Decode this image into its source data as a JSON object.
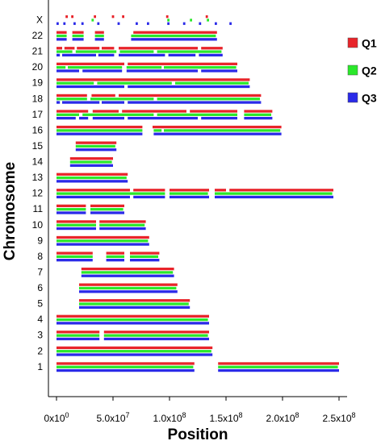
{
  "chart_data": {
    "type": "chromosome-track",
    "title": "",
    "xlabel": "Position",
    "ylabel": "Chromosome",
    "xlim": [
      0,
      250000000
    ],
    "x_ticks": [
      {
        "value": 0,
        "label": "0x10"
      },
      {
        "value": 50000000,
        "label": "5.0x10"
      },
      {
        "value": 100000000,
        "label": "1.0x10"
      },
      {
        "value": 150000000,
        "label": "1.5x10"
      },
      {
        "value": 200000000,
        "label": "2.0x10"
      },
      {
        "value": 250000000,
        "label": "2.5x10"
      }
    ],
    "x_tick_exponents": [
      "0",
      "7",
      "8",
      "8",
      "8",
      "8"
    ],
    "legend": {
      "placement": "right",
      "entries": [
        {
          "name": "Q1",
          "color": "#e8242a"
        },
        {
          "name": "Q2",
          "color": "#2ae82a"
        },
        {
          "name": "Q3",
          "color": "#2a2ae8"
        }
      ]
    },
    "chromosomes": [
      {
        "label": "X",
        "segments": [
          [
            [
              8000000,
              10000000
            ],
            [
              13000000,
              15000000
            ],
            [
              33000000,
              35000000
            ],
            [
              49000000,
              51000000
            ],
            [
              58000000,
              60000000
            ],
            [
              97000000,
              99000000
            ],
            [
              132000000,
              134000000
            ]
          ],
          [
            [
              31000000,
              33000000
            ],
            [
              98000000,
              100000000
            ],
            [
              118000000,
              120000000
            ],
            [
              133000000,
              135000000
            ]
          ],
          [
            [
              0,
              2000000
            ],
            [
              6000000,
              8000000
            ],
            [
              15000000,
              17000000
            ],
            [
              22000000,
              24000000
            ],
            [
              36000000,
              38000000
            ],
            [
              54000000,
              56000000
            ],
            [
              70000000,
              72000000
            ],
            [
              80000000,
              82000000
            ],
            [
              98000000,
              100000000
            ],
            [
              112000000,
              114000000
            ],
            [
              126000000,
              128000000
            ],
            [
              140000000,
              142000000
            ],
            [
              153000000,
              155000000
            ]
          ]
        ]
      },
      {
        "label": "22",
        "segments": [
          [
            [
              0,
              9000000
            ],
            [
              14000000,
              24000000
            ],
            [
              34000000,
              42000000
            ],
            [
              68000000,
              142000000
            ]
          ],
          [
            [
              0,
              9000000
            ],
            [
              14000000,
              24000000
            ],
            [
              34000000,
              42000000
            ],
            [
              66000000,
              141000000
            ]
          ],
          [
            [
              0,
              9000000
            ],
            [
              14000000,
              24000000
            ],
            [
              34000000,
              42000000
            ],
            [
              66000000,
              142000000
            ]
          ]
        ]
      },
      {
        "label": "21",
        "segments": [
          [
            [
              0,
              5000000
            ],
            [
              7000000,
              16000000
            ],
            [
              18000000,
              38000000
            ],
            [
              40000000,
              51000000
            ],
            [
              55000000,
              125000000
            ],
            [
              128000000,
              147000000
            ]
          ],
          [
            [
              0,
              14000000
            ],
            [
              17000000,
              53000000
            ],
            [
              56000000,
              86000000
            ],
            [
              89000000,
              146000000
            ]
          ],
          [
            [
              0,
              3000000
            ],
            [
              5000000,
              35000000
            ],
            [
              37000000,
              51000000
            ],
            [
              55000000,
              96000000
            ],
            [
              99000000,
              123000000
            ],
            [
              126000000,
              147000000
            ]
          ]
        ]
      },
      {
        "label": "20",
        "segments": [
          [
            [
              0,
              60000000
            ],
            [
              63000000,
              160000000
            ]
          ],
          [
            [
              0,
              8000000
            ],
            [
              10000000,
              58000000
            ],
            [
              62000000,
              93000000
            ],
            [
              95000000,
              159000000
            ]
          ],
          [
            [
              0,
              20000000
            ],
            [
              23000000,
              58000000
            ],
            [
              62000000,
              125000000
            ],
            [
              128000000,
              160000000
            ]
          ]
        ]
      },
      {
        "label": "19",
        "segments": [
          [
            [
              0,
              171000000
            ]
          ],
          [
            [
              0,
              33000000
            ],
            [
              36000000,
              102000000
            ],
            [
              105000000,
              170000000
            ]
          ],
          [
            [
              0,
              60000000
            ],
            [
              63000000,
              171000000
            ]
          ]
        ]
      },
      {
        "label": "18",
        "segments": [
          [
            [
              0,
              27000000
            ],
            [
              31000000,
              52000000
            ],
            [
              55000000,
              181000000
            ]
          ],
          [
            [
              0,
              27000000
            ],
            [
              30000000,
              86000000
            ],
            [
              89000000,
              180000000
            ]
          ],
          [
            [
              0,
              3000000
            ],
            [
              5000000,
              38000000
            ],
            [
              40000000,
              60000000
            ],
            [
              63000000,
              181000000
            ]
          ]
        ]
      },
      {
        "label": "17",
        "segments": [
          [
            [
              0,
              28000000
            ],
            [
              32000000,
              55000000
            ],
            [
              58000000,
              115000000
            ],
            [
              118000000,
              160000000
            ],
            [
              166000000,
              191000000
            ]
          ],
          [
            [
              0,
              20000000
            ],
            [
              23000000,
              86000000
            ],
            [
              89000000,
              160000000
            ],
            [
              166000000,
              190000000
            ]
          ],
          [
            [
              0,
              17000000
            ],
            [
              20000000,
              28000000
            ],
            [
              32000000,
              60000000
            ],
            [
              63000000,
              125000000
            ],
            [
              128000000,
              160000000
            ],
            [
              166000000,
              191000000
            ]
          ]
        ]
      },
      {
        "label": "16",
        "segments": [
          [
            [
              0,
              76000000
            ],
            [
              85000000,
              199000000
            ]
          ],
          [
            [
              0,
              76000000
            ],
            [
              86000000,
              93000000
            ],
            [
              95000000,
              198000000
            ]
          ],
          [
            [
              0,
              76000000
            ],
            [
              86000000,
              199000000
            ]
          ]
        ]
      },
      {
        "label": "15",
        "segments": [
          [
            [
              17000000,
              53000000
            ]
          ],
          [
            [
              17000000,
              52000000
            ]
          ],
          [
            [
              17000000,
              53000000
            ]
          ]
        ]
      },
      {
        "label": "14",
        "segments": [
          [
            [
              12000000,
              50000000
            ]
          ],
          [
            [
              12000000,
              49000000
            ]
          ],
          [
            [
              12000000,
              50000000
            ]
          ]
        ]
      },
      {
        "label": "13",
        "segments": [
          [
            [
              0,
              63000000
            ]
          ],
          [
            [
              0,
              62000000
            ]
          ],
          [
            [
              0,
              63000000
            ]
          ]
        ]
      },
      {
        "label": "12",
        "segments": [
          [
            [
              0,
              65000000
            ],
            [
              68000000,
              96000000
            ],
            [
              100000000,
              135000000
            ],
            [
              140000000,
              150000000
            ],
            [
              153000000,
              245000000
            ]
          ],
          [
            [
              0,
              96000000
            ],
            [
              100000000,
              134000000
            ],
            [
              140000000,
              244000000
            ]
          ],
          [
            [
              0,
              65000000
            ],
            [
              68000000,
              96000000
            ],
            [
              100000000,
              135000000
            ],
            [
              140000000,
              245000000
            ]
          ]
        ]
      },
      {
        "label": "11",
        "segments": [
          [
            [
              0,
              26000000
            ],
            [
              30000000,
              60000000
            ]
          ],
          [
            [
              0,
              26000000
            ],
            [
              30000000,
              59000000
            ]
          ],
          [
            [
              0,
              26000000
            ],
            [
              30000000,
              60000000
            ]
          ]
        ]
      },
      {
        "label": "10",
        "segments": [
          [
            [
              0,
              35000000
            ],
            [
              38000000,
              79000000
            ]
          ],
          [
            [
              0,
              35000000
            ],
            [
              38000000,
              78000000
            ]
          ],
          [
            [
              0,
              35000000
            ],
            [
              38000000,
              79000000
            ]
          ]
        ]
      },
      {
        "label": "9",
        "segments": [
          [
            [
              0,
              82000000
            ]
          ],
          [
            [
              0,
              81000000
            ]
          ],
          [
            [
              0,
              82000000
            ]
          ]
        ]
      },
      {
        "label": "8",
        "segments": [
          [
            [
              0,
              32000000
            ],
            [
              44000000,
              60000000
            ],
            [
              65000000,
              91000000
            ]
          ],
          [
            [
              0,
              32000000
            ],
            [
              44000000,
              60000000
            ],
            [
              65000000,
              90000000
            ]
          ],
          [
            [
              0,
              32000000
            ],
            [
              44000000,
              60000000
            ],
            [
              65000000,
              91000000
            ]
          ]
        ]
      },
      {
        "label": "7",
        "segments": [
          [
            [
              22000000,
              104000000
            ]
          ],
          [
            [
              22000000,
              103000000
            ]
          ],
          [
            [
              22000000,
              104000000
            ]
          ]
        ]
      },
      {
        "label": "6",
        "segments": [
          [
            [
              20000000,
              107000000
            ]
          ],
          [
            [
              20000000,
              106000000
            ]
          ],
          [
            [
              20000000,
              107000000
            ]
          ]
        ]
      },
      {
        "label": "5",
        "segments": [
          [
            [
              20000000,
              118000000
            ]
          ],
          [
            [
              20000000,
              117000000
            ]
          ],
          [
            [
              20000000,
              118000000
            ]
          ]
        ]
      },
      {
        "label": "4",
        "segments": [
          [
            [
              0,
              135000000
            ]
          ],
          [
            [
              0,
              134000000
            ]
          ],
          [
            [
              0,
              135000000
            ]
          ]
        ]
      },
      {
        "label": "3",
        "segments": [
          [
            [
              0,
              38000000
            ],
            [
              42000000,
              135000000
            ]
          ],
          [
            [
              0,
              38000000
            ],
            [
              42000000,
              134000000
            ]
          ],
          [
            [
              0,
              38000000
            ],
            [
              42000000,
              135000000
            ]
          ]
        ]
      },
      {
        "label": "2",
        "segments": [
          [
            [
              0,
              138000000
            ]
          ],
          [
            [
              0,
              137000000
            ]
          ],
          [
            [
              0,
              138000000
            ]
          ]
        ]
      },
      {
        "label": "1",
        "segments": [
          [
            [
              0,
              122000000
            ],
            [
              143000000,
              250000000
            ]
          ],
          [
            [
              0,
              121000000
            ],
            [
              143000000,
              249000000
            ]
          ],
          [
            [
              0,
              122000000
            ],
            [
              143000000,
              250000000
            ]
          ]
        ]
      }
    ]
  }
}
